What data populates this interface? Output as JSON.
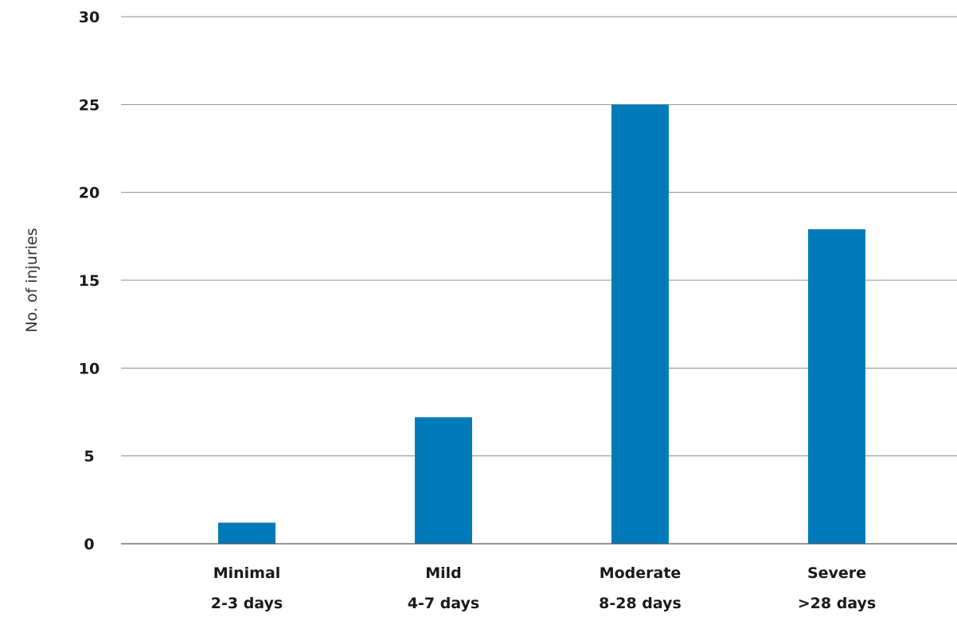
{
  "chart_data": {
    "type": "bar",
    "categories": [
      [
        "Minimal",
        "2-3 days"
      ],
      [
        "Mild",
        "4-7 days"
      ],
      [
        "Moderate",
        "8-28 days"
      ],
      [
        "Severe",
        ">28 days"
      ]
    ],
    "values": [
      1.2,
      7.2,
      25,
      17.9
    ],
    "title": "",
    "xlabel": "",
    "ylabel": "No. of injuries",
    "ylim": [
      0,
      30
    ],
    "yticks": [
      "0",
      "5",
      "10",
      "15",
      "20",
      "25",
      "30"
    ],
    "grid": true,
    "legend": "none",
    "bar_color": "#007ab9",
    "grid_color": "#8c8c8c"
  }
}
